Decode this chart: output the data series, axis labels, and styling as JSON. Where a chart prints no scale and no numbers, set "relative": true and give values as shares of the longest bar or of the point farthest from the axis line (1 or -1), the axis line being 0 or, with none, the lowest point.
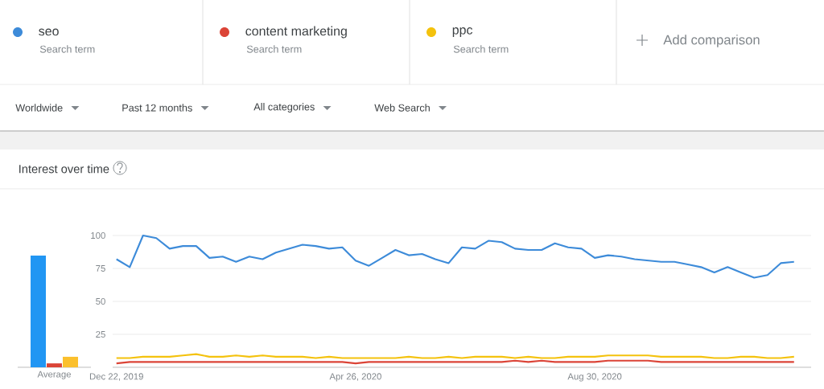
{
  "chart_data": [
    {
      "type": "bar",
      "categories": [
        "Average"
      ],
      "relative": true,
      "series": [
        {
          "color": "#2196f3",
          "values": [
            1
          ]
        },
        {
          "color": "#db4437",
          "values": [
            0.035
          ]
        },
        {
          "color": "#fbc02d",
          "values": [
            0.094
          ]
        }
      ]
    },
    {
      "type": "line",
      "title": "Interest over time",
      "legend": "top",
      "grid": "y",
      "annotations": [
        "Search term",
        "Search term",
        "Search term",
        "Add comparison",
        "Worldwide",
        "Past 12 months",
        "All categories",
        "Web Search"
      ],
      "xlim": [
        "2019-12-20",
        "2020-12-22"
      ],
      "xticks": [
        {
          "value": "2019-12-22",
          "label": "Dec 22, 2019"
        },
        {
          "value": "2020-04-26",
          "label": "Apr 26, 2020"
        },
        {
          "value": "2020-08-30",
          "label": "Aug 30, 2020"
        }
      ],
      "ylim": [
        0,
        100
      ],
      "yticks": [
        25,
        50,
        75,
        100
      ],
      "x": [
        "2019-12-22",
        "2019-12-29",
        "2020-01-05",
        "2020-01-12",
        "2020-01-19",
        "2020-01-26",
        "2020-02-02",
        "2020-02-09",
        "2020-02-16",
        "2020-02-23",
        "2020-03-01",
        "2020-03-08",
        "2020-03-15",
        "2020-03-22",
        "2020-03-29",
        "2020-04-05",
        "2020-04-12",
        "2020-04-19",
        "2020-04-26",
        "2020-05-03",
        "2020-05-10",
        "2020-05-17",
        "2020-05-24",
        "2020-05-31",
        "2020-06-07",
        "2020-06-14",
        "2020-06-21",
        "2020-06-28",
        "2020-07-05",
        "2020-07-12",
        "2020-07-19",
        "2020-07-26",
        "2020-08-02",
        "2020-08-09",
        "2020-08-16",
        "2020-08-23",
        "2020-08-30",
        "2020-09-06",
        "2020-09-13",
        "2020-09-20",
        "2020-09-27",
        "2020-10-04",
        "2020-10-11",
        "2020-10-18",
        "2020-10-25",
        "2020-11-01",
        "2020-11-08",
        "2020-11-15",
        "2020-11-22",
        "2020-11-29",
        "2020-12-06",
        "2020-12-13"
      ],
      "series": [
        {
          "name": "seo",
          "color": "#3d8bd9",
          "values": [
            82,
            76,
            100,
            98,
            90,
            92,
            92,
            83,
            84,
            80,
            84,
            82,
            87,
            90,
            93,
            92,
            90,
            91,
            81,
            77,
            83,
            89,
            85,
            86,
            82,
            79,
            91,
            90,
            96,
            95,
            90,
            89,
            89,
            94,
            91,
            90,
            83,
            85,
            84,
            82,
            81,
            80,
            80,
            78,
            76,
            72,
            76,
            72,
            68,
            70,
            79,
            80
          ]
        },
        {
          "name": "content marketing",
          "color": "#db4437",
          "values": [
            3,
            4,
            4,
            4,
            4,
            4,
            4,
            4,
            4,
            4,
            4,
            4,
            4,
            4,
            4,
            4,
            4,
            4,
            3,
            4,
            4,
            4,
            4,
            4,
            4,
            4,
            4,
            4,
            4,
            4,
            5,
            4,
            5,
            4,
            4,
            4,
            4,
            5,
            5,
            5,
            5,
            4,
            4,
            4,
            4,
            4,
            4,
            4,
            4,
            4,
            4,
            4
          ]
        },
        {
          "name": "ppc",
          "color": "#f4c20d",
          "values": [
            7,
            7,
            8,
            8,
            8,
            9,
            10,
            8,
            8,
            9,
            8,
            9,
            8,
            8,
            8,
            7,
            8,
            7,
            7,
            7,
            7,
            7,
            8,
            7,
            7,
            8,
            7,
            8,
            8,
            8,
            7,
            8,
            7,
            7,
            8,
            8,
            8,
            9,
            9,
            9,
            9,
            8,
            8,
            8,
            8,
            7,
            7,
            8,
            8,
            7,
            7,
            8
          ]
        }
      ]
    }
  ]
}
